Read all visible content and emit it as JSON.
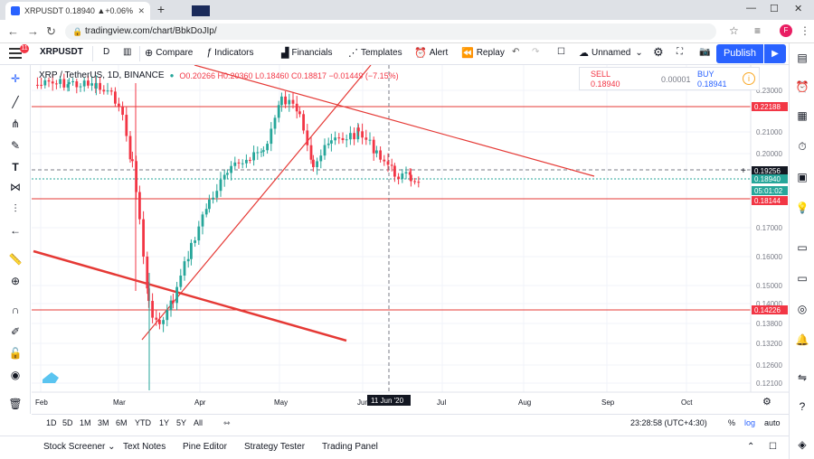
{
  "browser": {
    "tab_title": "XRPUSDT 0.18940 ▲+0.06% Un",
    "url": "tradingview.com/chart/BbkDoJIp/"
  },
  "toolbar": {
    "notification_count": "11",
    "symbol": "XRPUSDT",
    "interval": "D",
    "compare_label": "Compare",
    "indicators_label": "Indicators",
    "financials_label": "Financials",
    "templates_label": "Templates",
    "alert_label": "Alert",
    "replay_label": "Replay",
    "layout_name": "Unnamed",
    "publish_label": "Publish"
  },
  "legend": {
    "symbol_text": "XRP / TetherUS, 1D, BINANCE",
    "ohlc_text": "O0.20266 H0.20360 L0.18460 C0.18817 −0.01449 (−7.15%)"
  },
  "trade": {
    "sell_label": "SELL",
    "sell_price": "0.18940",
    "spread": "0.00001",
    "buy_label": "BUY",
    "buy_price": "0.18941"
  },
  "price_axis": {
    "ticks": [
      "0.23000",
      "0.21000",
      "0.20000",
      "0.17000",
      "0.16000",
      "0.15000",
      "0.14000",
      "0.13800",
      "0.13200",
      "0.12600",
      "0.12100"
    ],
    "badges": [
      {
        "label": "0.22188",
        "color": "#f23645"
      },
      {
        "label": "0.19256",
        "color": "#131722"
      },
      {
        "label": "0.18940",
        "color": "#26a69a"
      },
      {
        "label": "05:01:02",
        "color": "#26a69a"
      },
      {
        "label": "0.18144",
        "color": "#f23645"
      },
      {
        "label": "0.14226",
        "color": "#f23645"
      }
    ]
  },
  "time_axis": {
    "labels": [
      "Feb",
      "Mar",
      "Apr",
      "May",
      "Jun",
      "Jul",
      "Aug",
      "Sep",
      "Oct"
    ],
    "crosshair_label": "11 Jun '20"
  },
  "chart_data": {
    "type": "candlestick",
    "symbol": "XRP / TetherUS, 1D, BINANCE",
    "horizontal_levels": [
      0.22188,
      0.18144,
      0.14226
    ],
    "crosshair_price": 0.19256,
    "last_price": 0.1894
  },
  "range_bar": {
    "ranges": [
      "1D",
      "5D",
      "1M",
      "3M",
      "6M",
      "YTD",
      "1Y",
      "5Y",
      "All"
    ],
    "clock": "23:28:58 (UTC+4:30)",
    "percent": "%",
    "log": "log",
    "auto": "auto"
  },
  "bottom_panel": {
    "tabs": [
      "Stock Screener",
      "Text Notes",
      "Pine Editor",
      "Strategy Tester",
      "Trading Panel"
    ]
  },
  "colors": {
    "accent": "#2962ff",
    "up": "#26a69a",
    "down": "#f23645",
    "drawing": "#e53935"
  }
}
